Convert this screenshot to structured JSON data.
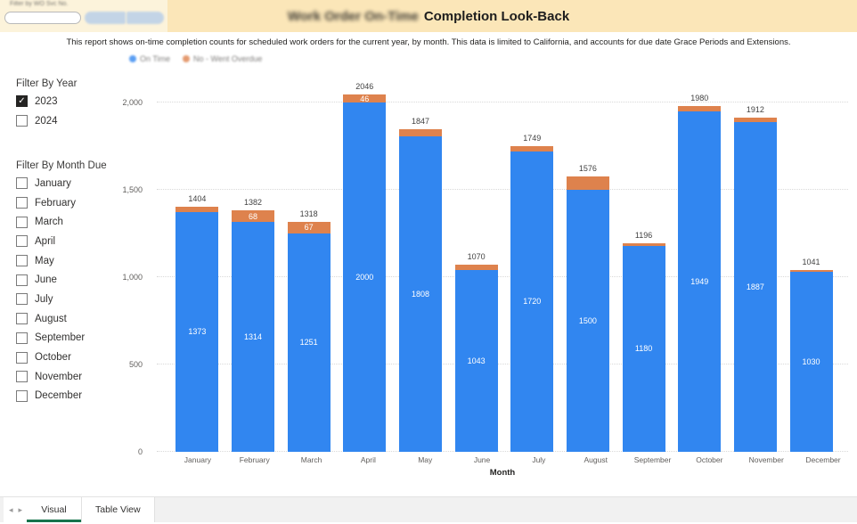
{
  "header": {
    "title_part1": "Work Order On-Time",
    "title_part2": "Completion Look-Back",
    "filter_widget": {
      "label": "Filter by WO Svc No.",
      "input_value": "",
      "input_placeholder": ""
    }
  },
  "subtitle": "This report shows on-time completion counts for scheduled work orders for the current year, by month. This data is limited to California, and accounts for due date Grace Periods and Extensions.",
  "legend": [
    {
      "label": "On Time",
      "color": "#3186F0"
    },
    {
      "label": "No - Went Overdue",
      "color": "#DE824D"
    }
  ],
  "filters": {
    "year": {
      "label": "Filter By Year",
      "options": [
        {
          "label": "2023",
          "checked": true
        },
        {
          "label": "2024",
          "checked": false
        }
      ]
    },
    "month": {
      "label": "Filter By Month Due",
      "options": [
        {
          "label": "January",
          "checked": false
        },
        {
          "label": "February",
          "checked": false
        },
        {
          "label": "March",
          "checked": false
        },
        {
          "label": "April",
          "checked": false
        },
        {
          "label": "May",
          "checked": false
        },
        {
          "label": "June",
          "checked": false
        },
        {
          "label": "July",
          "checked": false
        },
        {
          "label": "August",
          "checked": false
        },
        {
          "label": "September",
          "checked": false
        },
        {
          "label": "October",
          "checked": false
        },
        {
          "label": "November",
          "checked": false
        },
        {
          "label": "December",
          "checked": false
        }
      ]
    }
  },
  "chart_data": {
    "type": "bar",
    "stacked": true,
    "title": "Work Order On-Time Completion Look-Back",
    "xlabel": "Month",
    "ylabel": "",
    "ylim": [
      0,
      2100
    ],
    "grid": true,
    "legend_position": "top-left",
    "categories": [
      "January",
      "February",
      "March",
      "April",
      "May",
      "June",
      "July",
      "August",
      "September",
      "October",
      "November",
      "December"
    ],
    "series": [
      {
        "name": "On Time",
        "color": "#3186F0",
        "values": [
          1373,
          1314,
          1251,
          2000,
          1808,
          1043,
          1720,
          1500,
          1180,
          1949,
          1887,
          1030
        ],
        "labels_visible": [
          true,
          true,
          true,
          true,
          true,
          true,
          true,
          true,
          true,
          true,
          true,
          true
        ]
      },
      {
        "name": "No - Went Overdue",
        "color": "#DE824D",
        "values": [
          31,
          68,
          67,
          46,
          39,
          27,
          29,
          76,
          16,
          31,
          25,
          11
        ],
        "labels_visible": [
          false,
          true,
          true,
          true,
          false,
          false,
          false,
          false,
          false,
          false,
          false,
          false
        ]
      }
    ],
    "totals": [
      1404,
      1382,
      1318,
      2046,
      1847,
      1070,
      1749,
      1576,
      1196,
      1980,
      1912,
      1041
    ],
    "yticks": [
      {
        "value": 0,
        "label": "0"
      },
      {
        "value": 500,
        "label": "500"
      },
      {
        "value": 1000,
        "label": "1,000"
      },
      {
        "value": 1500,
        "label": "1,500"
      },
      {
        "value": 2000,
        "label": "2,000"
      }
    ]
  },
  "tabs": [
    {
      "label": "Visual",
      "active": true
    },
    {
      "label": "Table View",
      "active": false
    }
  ],
  "colors": {
    "header_bg": "#FBE6B8",
    "header_left_bg": "#FCF3DB",
    "on_time": "#3186F0",
    "overdue": "#DE824D",
    "tab_active_underline": "#17744D",
    "gridline": "#D9D9D9"
  }
}
